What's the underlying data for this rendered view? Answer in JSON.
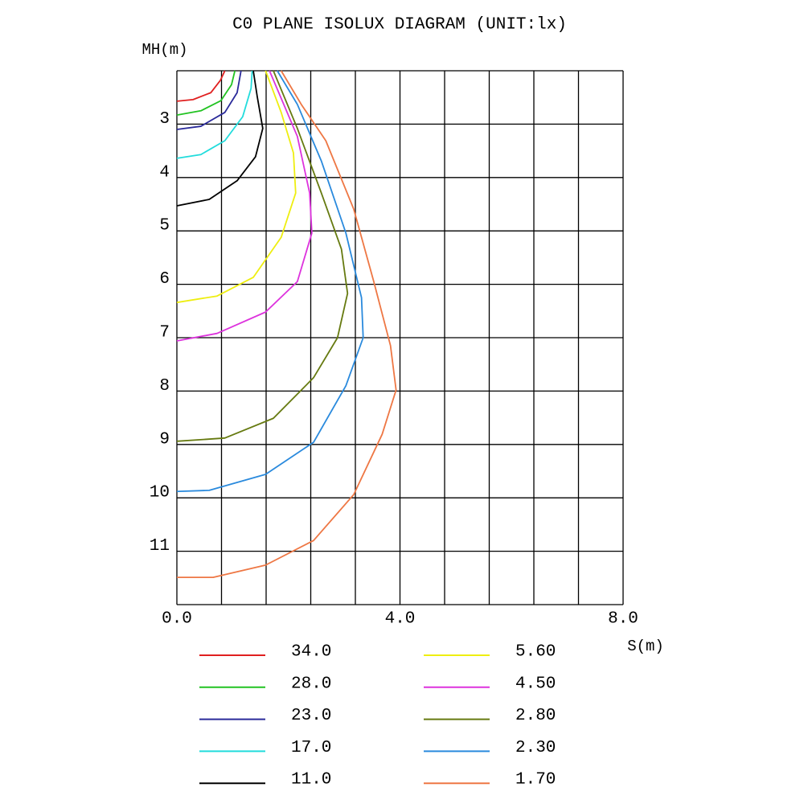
{
  "chart_data": {
    "type": "line",
    "title": "C0 PLANE ISOLUX DIAGRAM (UNIT:lx)",
    "y_label": "MH(m)",
    "x_label": "S(m)",
    "xlim": [
      0,
      8
    ],
    "ylim": [
      2,
      12
    ],
    "y_inverted": true,
    "xticks": [
      {
        "value": 0,
        "label": "0.0"
      },
      {
        "value": 4,
        "label": "4.0"
      },
      {
        "value": 8,
        "label": "8.0"
      }
    ],
    "x_gridlines": [
      0.8,
      1.6,
      2.4,
      3.2,
      4.0,
      4.8,
      5.6,
      6.4,
      7.2
    ],
    "yticks": [
      3,
      4,
      5,
      6,
      7,
      8,
      9,
      10,
      11
    ],
    "grid": true,
    "series": [
      {
        "name": "34.0",
        "color": "#e02020",
        "x": [
          0,
          0.29,
          0.61,
          0.78,
          0.86
        ],
        "values": [
          2.57,
          2.54,
          2.41,
          2.18,
          2.0
        ]
      },
      {
        "name": "28.0",
        "color": "#22c322",
        "x": [
          0,
          0.43,
          0.79,
          0.98,
          1.04
        ],
        "values": [
          2.83,
          2.75,
          2.56,
          2.26,
          2.0
        ]
      },
      {
        "name": "23.0",
        "color": "#2a2a9a",
        "x": [
          0,
          0.43,
          0.86,
          1.08,
          1.15
        ],
        "values": [
          3.1,
          3.04,
          2.78,
          2.41,
          2.0
        ]
      },
      {
        "name": "17.0",
        "color": "#22dcdc",
        "x": [
          0,
          0.43,
          0.86,
          1.18,
          1.33,
          1.35
        ],
        "values": [
          3.64,
          3.57,
          3.31,
          2.86,
          2.33,
          2.0
        ]
      },
      {
        "name": "11.0",
        "color": "#000000",
        "x": [
          0,
          0.58,
          1.08,
          1.41,
          1.54,
          1.44,
          1.37
        ],
        "values": [
          4.53,
          4.41,
          4.06,
          3.61,
          3.08,
          2.48,
          2.0
        ]
      },
      {
        "name": "5.60",
        "color": "#eeee10",
        "x": [
          0,
          0.72,
          1.37,
          1.87,
          2.13,
          2.09,
          1.87,
          1.59
        ],
        "values": [
          6.34,
          6.22,
          5.87,
          5.12,
          4.29,
          3.54,
          2.78,
          2.0
        ]
      },
      {
        "name": "4.50",
        "color": "#dd33dd",
        "x": [
          0,
          0.72,
          1.59,
          2.16,
          2.42,
          2.38,
          2.16,
          1.66
        ],
        "values": [
          7.06,
          6.92,
          6.52,
          5.95,
          5.04,
          4.29,
          3.23,
          2.0
        ]
      },
      {
        "name": "2.80",
        "color": "#667a10",
        "x": [
          0,
          0.86,
          1.73,
          2.45,
          2.88,
          3.06,
          2.95,
          2.59,
          2.16,
          1.73
        ],
        "values": [
          8.94,
          8.88,
          8.51,
          7.75,
          7.0,
          6.17,
          5.34,
          4.29,
          3.08,
          2.0
        ]
      },
      {
        "name": "2.30",
        "color": "#2a8add",
        "x": [
          0,
          0.58,
          1.59,
          2.45,
          3.03,
          3.34,
          3.31,
          3.03,
          2.59,
          2.16,
          1.8
        ],
        "values": [
          9.88,
          9.86,
          9.56,
          8.96,
          7.9,
          7.0,
          6.25,
          5.04,
          3.69,
          2.63,
          2.0
        ]
      },
      {
        "name": "1.70",
        "color": "#ee7744",
        "x": [
          0,
          0.65,
          1.59,
          2.45,
          3.17,
          3.68,
          3.93,
          3.83,
          3.53,
          3.17,
          2.67,
          2.23,
          1.87
        ],
        "values": [
          11.49,
          11.49,
          11.26,
          10.8,
          9.94,
          8.81,
          7.98,
          7.15,
          5.95,
          4.59,
          3.31,
          2.63,
          2.0
        ]
      }
    ]
  }
}
